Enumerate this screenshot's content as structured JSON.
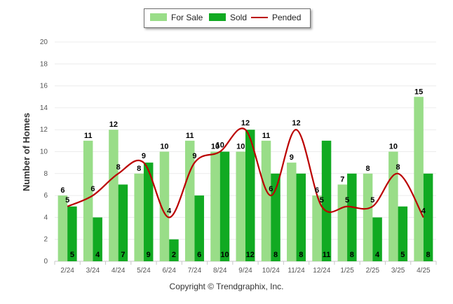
{
  "chart_data": {
    "type": "bar",
    "title": "",
    "xlabel": "",
    "ylabel": "Number of Homes",
    "ylim": [
      0,
      20
    ],
    "yticks": [
      0,
      2,
      4,
      6,
      8,
      10,
      12,
      14,
      16,
      18,
      20
    ],
    "categories": [
      "2/24",
      "3/24",
      "4/24",
      "5/24",
      "6/24",
      "7/24",
      "8/24",
      "9/24",
      "10/24",
      "11/24",
      "12/24",
      "1/25",
      "2/25",
      "3/25",
      "4/25"
    ],
    "series": [
      {
        "name": "For Sale",
        "type": "bar",
        "color": "#99dd88",
        "values": [
          6,
          11,
          12,
          8,
          10,
          11,
          10,
          10,
          11,
          9,
          6,
          7,
          8,
          10,
          15
        ]
      },
      {
        "name": "Sold",
        "type": "bar",
        "color": "#11aa22",
        "values": [
          5,
          4,
          7,
          9,
          2,
          6,
          10,
          12,
          8,
          8,
          11,
          8,
          4,
          5,
          8
        ]
      },
      {
        "name": "Pended",
        "type": "line",
        "color": "#bb0000",
        "values": [
          5,
          6,
          8,
          9,
          4,
          9,
          10,
          12,
          6,
          12,
          5,
          5,
          5,
          8,
          4
        ]
      }
    ],
    "legend_position": "top-center",
    "grid": true
  },
  "legend": {
    "for_sale": "For Sale",
    "sold": "Sold",
    "pended": "Pended"
  },
  "footer": {
    "copyright": "Copyright © Trendgraphix, Inc."
  }
}
